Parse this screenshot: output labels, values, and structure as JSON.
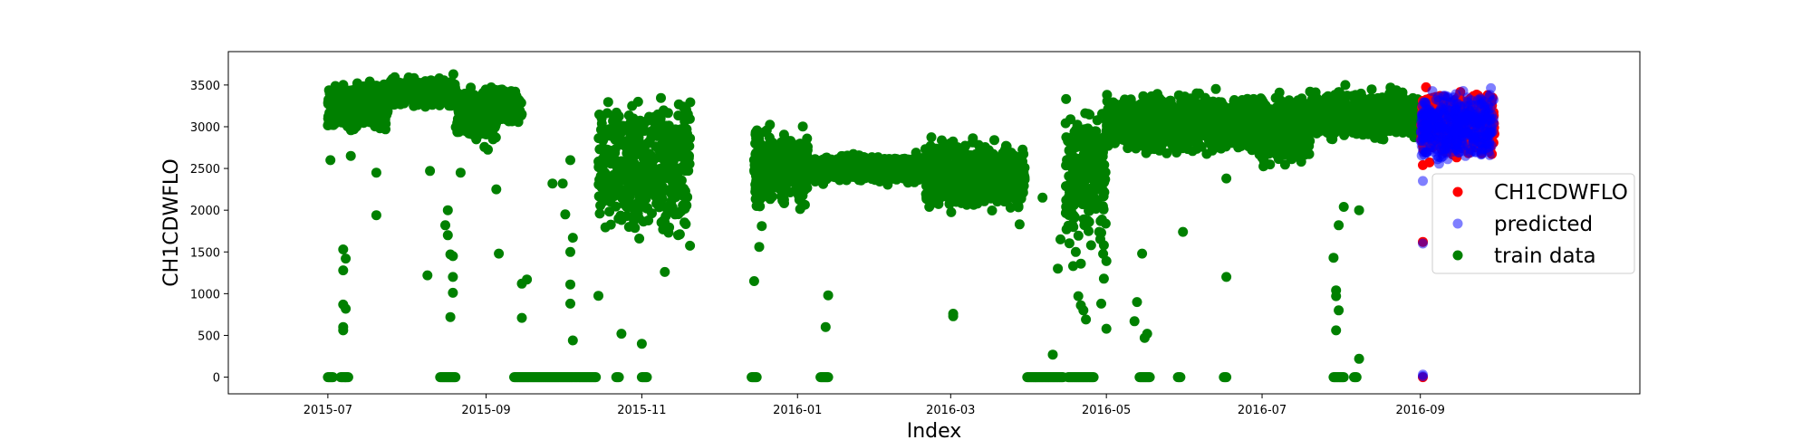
{
  "chart_data": {
    "type": "scatter",
    "xlabel": "Index",
    "ylabel": "CH1CDWFLO",
    "x_range": [
      "2015-05-23",
      "2016-11-26"
    ],
    "ylim": [
      -200,
      3900
    ],
    "x_ticks": [
      "2015-07",
      "2015-09",
      "2015-11",
      "2016-01",
      "2016-03",
      "2016-05",
      "2016-07",
      "2016-09"
    ],
    "y_ticks": [
      0,
      500,
      1000,
      1500,
      2000,
      2500,
      3000,
      3500
    ],
    "grid": false,
    "legend": {
      "position": "center-right",
      "entries": [
        "CH1CDWFLO",
        "predicted",
        "train data"
      ]
    },
    "series": [
      {
        "name": "train data",
        "color": "#008000",
        "marker": "circle",
        "date_range": [
          "2015-07-01",
          "2016-08-31"
        ],
        "band_segments": [
          {
            "from": "2015-07-01",
            "to": "2015-07-25",
            "low": 2900,
            "high": 3600
          },
          {
            "from": "2015-07-25",
            "to": "2015-08-20",
            "low": 3200,
            "high": 3650
          },
          {
            "from": "2015-08-20",
            "to": "2015-09-05",
            "low": 2700,
            "high": 3550
          },
          {
            "from": "2015-09-05",
            "to": "2015-09-15",
            "low": 3000,
            "high": 3500
          },
          {
            "from": "2015-10-15",
            "to": "2015-11-20",
            "low": 1500,
            "high": 3550
          },
          {
            "from": "2015-12-15",
            "to": "2016-01-05",
            "low": 1900,
            "high": 3100
          },
          {
            "from": "2016-01-05",
            "to": "2016-02-20",
            "low": 2300,
            "high": 2700
          },
          {
            "from": "2016-02-20",
            "to": "2016-03-30",
            "low": 1900,
            "high": 2900
          },
          {
            "from": "2016-04-15",
            "to": "2016-05-01",
            "low": 1300,
            "high": 3500
          },
          {
            "from": "2016-05-01",
            "to": "2016-07-01",
            "low": 2600,
            "high": 3500
          },
          {
            "from": "2016-07-01",
            "to": "2016-07-20",
            "low": 2400,
            "high": 3500
          },
          {
            "from": "2016-07-20",
            "to": "2016-08-31",
            "low": 2800,
            "high": 3500
          }
        ],
        "zero_segments": [
          {
            "from": "2015-07-01",
            "to": "2015-07-03"
          },
          {
            "from": "2015-07-06",
            "to": "2015-07-09"
          },
          {
            "from": "2015-08-14",
            "to": "2015-08-20"
          },
          {
            "from": "2015-09-12",
            "to": "2015-10-14"
          },
          {
            "from": "2015-10-22",
            "to": "2015-10-23"
          },
          {
            "from": "2015-11-01",
            "to": "2015-11-03"
          },
          {
            "from": "2015-12-14",
            "to": "2015-12-16"
          },
          {
            "from": "2016-01-10",
            "to": "2016-01-13"
          },
          {
            "from": "2016-03-31",
            "to": "2016-04-14"
          },
          {
            "from": "2016-04-16",
            "to": "2016-04-26"
          },
          {
            "from": "2016-05-14",
            "to": "2016-05-18"
          },
          {
            "from": "2016-05-29",
            "to": "2016-05-30"
          },
          {
            "from": "2016-06-16",
            "to": "2016-06-17"
          },
          {
            "from": "2016-07-29",
            "to": "2016-08-02"
          },
          {
            "from": "2016-08-06",
            "to": "2016-08-07"
          }
        ],
        "outliers": [
          [
            "2015-07-02",
            2600
          ],
          [
            "2015-07-07",
            1530
          ],
          [
            "2015-07-08",
            1420
          ],
          [
            "2015-07-07",
            1280
          ],
          [
            "2015-07-07",
            870
          ],
          [
            "2015-07-08",
            820
          ],
          [
            "2015-07-07",
            600
          ],
          [
            "2015-07-07",
            560
          ],
          [
            "2015-07-10",
            2650
          ],
          [
            "2015-07-20",
            2450
          ],
          [
            "2015-07-20",
            1940
          ],
          [
            "2015-08-10",
            2470
          ],
          [
            "2015-08-09",
            1220
          ],
          [
            "2015-08-16",
            1820
          ],
          [
            "2015-08-17",
            1700
          ],
          [
            "2015-08-18",
            1470
          ],
          [
            "2015-08-19",
            1450
          ],
          [
            "2015-08-19",
            1200
          ],
          [
            "2015-08-19",
            1010
          ],
          [
            "2015-08-18",
            720
          ],
          [
            "2015-08-17",
            2000
          ],
          [
            "2015-08-22",
            2450
          ],
          [
            "2015-09-05",
            2250
          ],
          [
            "2015-09-06",
            1480
          ],
          [
            "2015-09-15",
            1120
          ],
          [
            "2015-09-17",
            1170
          ],
          [
            "2015-09-15",
            710
          ],
          [
            "2015-09-27",
            2320
          ],
          [
            "2015-10-01",
            2320
          ],
          [
            "2015-10-04",
            2600
          ],
          [
            "2015-10-04",
            1500
          ],
          [
            "2015-10-05",
            1670
          ],
          [
            "2015-10-04",
            1110
          ],
          [
            "2015-10-04",
            880
          ],
          [
            "2015-10-05",
            440
          ],
          [
            "2015-10-02",
            1950
          ],
          [
            "2015-10-15",
            975
          ],
          [
            "2015-10-27",
            1800
          ],
          [
            "2015-10-24",
            520
          ],
          [
            "2015-11-01",
            400
          ],
          [
            "2015-10-31",
            1660
          ],
          [
            "2015-11-10",
            1260
          ],
          [
            "2015-12-15",
            1150
          ],
          [
            "2015-12-17",
            1560
          ],
          [
            "2015-12-18",
            1810
          ],
          [
            "2016-01-12",
            600
          ],
          [
            "2016-01-13",
            980
          ],
          [
            "2016-03-02",
            730
          ],
          [
            "2016-03-02",
            760
          ],
          [
            "2016-03-28",
            1830
          ],
          [
            "2016-04-06",
            2150
          ],
          [
            "2016-04-10",
            270
          ],
          [
            "2016-04-12",
            1300
          ],
          [
            "2016-04-13",
            1650
          ],
          [
            "2016-04-18",
            1330
          ],
          [
            "2016-04-19",
            1500
          ],
          [
            "2016-04-20",
            970
          ],
          [
            "2016-04-21",
            1360
          ],
          [
            "2016-04-22",
            2400
          ],
          [
            "2016-04-24",
            1750
          ],
          [
            "2016-04-25",
            1580
          ],
          [
            "2016-04-22",
            800
          ],
          [
            "2016-04-23",
            690
          ],
          [
            "2016-04-21",
            860
          ],
          [
            "2016-04-29",
            1730
          ],
          [
            "2016-04-30",
            1580
          ],
          [
            "2016-05-01",
            1390
          ],
          [
            "2016-04-30",
            1180
          ],
          [
            "2016-04-30",
            2330
          ],
          [
            "2016-05-01",
            580
          ],
          [
            "2016-04-29",
            880
          ],
          [
            "2016-05-12",
            670
          ],
          [
            "2016-05-13",
            900
          ],
          [
            "2016-05-16",
            470
          ],
          [
            "2016-05-17",
            520
          ],
          [
            "2016-05-15",
            1480
          ],
          [
            "2016-05-31",
            1740
          ],
          [
            "2016-06-17",
            1200
          ],
          [
            "2016-06-17",
            2380
          ],
          [
            "2016-07-29",
            1430
          ],
          [
            "2016-07-30",
            1040
          ],
          [
            "2016-07-30",
            970
          ],
          [
            "2016-07-31",
            800
          ],
          [
            "2016-07-30",
            560
          ],
          [
            "2016-07-31",
            1820
          ],
          [
            "2016-08-02",
            2040
          ],
          [
            "2016-08-08",
            2000
          ],
          [
            "2016-08-08",
            220
          ]
        ]
      },
      {
        "name": "CH1CDWFLO",
        "color": "#ff0000",
        "marker": "circle",
        "date_range": [
          "2016-09-01",
          "2016-09-30"
        ],
        "band": {
          "low": 2550,
          "high": 3550
        },
        "outliers": [
          [
            "2016-09-02",
            0
          ],
          [
            "2016-09-02",
            2540
          ],
          [
            "2016-09-02",
            1620
          ]
        ]
      },
      {
        "name": "predicted",
        "color": "#0000ff",
        "marker": "circle",
        "alpha": 0.5,
        "date_range": [
          "2016-09-01",
          "2016-09-30"
        ],
        "band": {
          "low": 2500,
          "high": 3550
        },
        "outliers": [
          [
            "2016-09-02",
            30
          ],
          [
            "2016-09-02",
            10
          ],
          [
            "2016-09-02",
            2350
          ],
          [
            "2016-09-02",
            1600
          ]
        ]
      }
    ]
  }
}
